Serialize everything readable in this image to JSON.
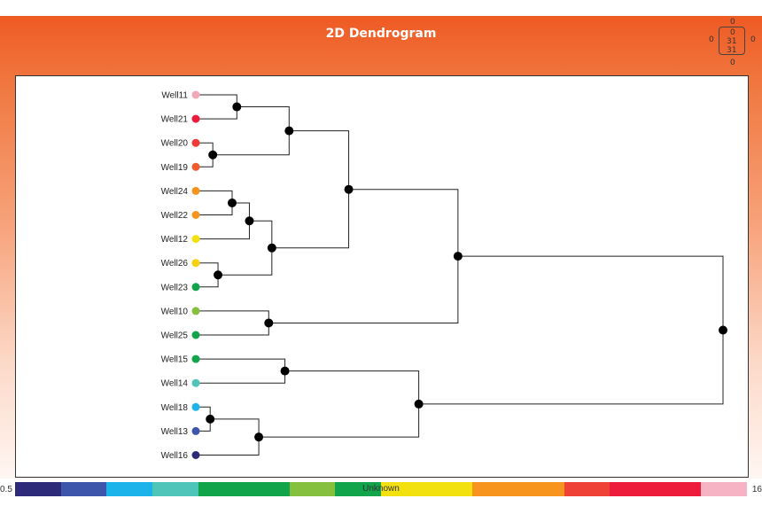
{
  "title": "2D Dendrogram",
  "view_widget": {
    "top": "0",
    "left": "0",
    "right": "0",
    "bottom": "0",
    "center_top": "0",
    "center_mid": "31",
    "center_bot": "31"
  },
  "color_scale": {
    "min_label": "0.5",
    "max_label": "16",
    "center_label": "Unknown",
    "colors": [
      "#2e2a7a",
      "#3d56ab",
      "#1cb3ea",
      "#4ec5b8",
      "#11a44a",
      "#11a44a",
      "#86c03f",
      "#11a44a",
      "#f3e10f",
      "#f3e10f",
      "#f7941d",
      "#f7941d",
      "#ef4136",
      "#ed1c3a",
      "#ed1c3a",
      "#f5b3c3"
    ]
  },
  "chart_data": {
    "type": "dendrogram",
    "title": "2D Dendrogram",
    "leaves": [
      {
        "label": "Well11",
        "color": "#f4a7b9"
      },
      {
        "label": "Well21",
        "color": "#ed1c3a"
      },
      {
        "label": "Well20",
        "color": "#ef3a36"
      },
      {
        "label": "Well19",
        "color": "#f15a2b"
      },
      {
        "label": "Well24",
        "color": "#f7941d"
      },
      {
        "label": "Well22",
        "color": "#f7941d"
      },
      {
        "label": "Well12",
        "color": "#f3e10f"
      },
      {
        "label": "Well26",
        "color": "#f5d10f"
      },
      {
        "label": "Well23",
        "color": "#11a44a"
      },
      {
        "label": "Well10",
        "color": "#86c03f"
      },
      {
        "label": "Well25",
        "color": "#11a44a"
      },
      {
        "label": "Well15",
        "color": "#11a44a"
      },
      {
        "label": "Well14",
        "color": "#4ec5b8"
      },
      {
        "label": "Well18",
        "color": "#1cb3ea"
      },
      {
        "label": "Well13",
        "color": "#3d56ab"
      },
      {
        "label": "Well16",
        "color": "#2e2a7a"
      }
    ],
    "merges": [
      {
        "a": 0,
        "b": 1,
        "height": 0.07
      },
      {
        "a": 2,
        "b": 3,
        "height": 0.024
      },
      {
        "a": 16,
        "b": 17,
        "height": 0.17
      },
      {
        "a": 4,
        "b": 5,
        "height": 0.061
      },
      {
        "a": 19,
        "b": 6,
        "height": 0.094
      },
      {
        "a": 7,
        "b": 8,
        "height": 0.034
      },
      {
        "a": 20,
        "b": 21,
        "height": 0.137
      },
      {
        "a": 18,
        "b": 22,
        "height": 0.284
      },
      {
        "a": 9,
        "b": 10,
        "height": 0.131
      },
      {
        "a": 23,
        "b": 24,
        "height": 0.493
      },
      {
        "a": 11,
        "b": 12,
        "height": 0.162
      },
      {
        "a": 13,
        "b": 14,
        "height": 0.019
      },
      {
        "a": 27,
        "b": 15,
        "height": 0.112
      },
      {
        "a": 26,
        "b": 28,
        "height": 0.418
      },
      {
        "a": 25,
        "b": 29,
        "height": 1.0
      }
    ]
  }
}
